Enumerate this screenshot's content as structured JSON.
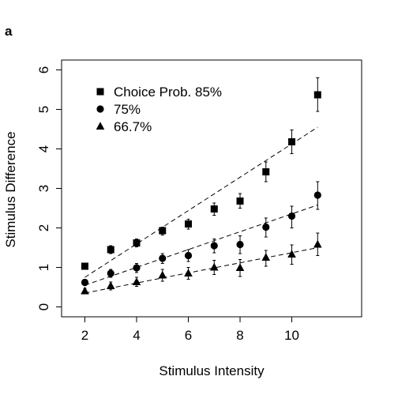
{
  "panel_label": "a",
  "chart_data": {
    "type": "scatter",
    "xlabel": "Stimulus Intensity",
    "ylabel": "Stimulus Difference",
    "xlim": [
      1.1,
      12.7
    ],
    "ylim": [
      -0.25,
      6.25
    ],
    "xticks": [
      2,
      4,
      6,
      8,
      10
    ],
    "yticks": [
      0,
      1,
      2,
      3,
      4,
      5,
      6
    ],
    "x": [
      2,
      3,
      4,
      5,
      6,
      7,
      8,
      9,
      10,
      11
    ],
    "legend_position": "top-left",
    "grid": false,
    "series": [
      {
        "name": "Choice Prob. 85%",
        "marker": "square",
        "values": [
          1.03,
          1.45,
          1.62,
          1.93,
          2.1,
          2.48,
          2.68,
          3.42,
          4.18,
          5.37
        ],
        "err_low": [
          0.95,
          1.35,
          1.52,
          1.82,
          1.97,
          2.32,
          2.5,
          3.17,
          3.88,
          4.95
        ],
        "err_high": [
          1.1,
          1.55,
          1.72,
          2.02,
          2.22,
          2.63,
          2.87,
          3.67,
          4.48,
          5.8
        ],
        "fit": {
          "x": [
            2,
            11
          ],
          "y": [
            0.75,
            4.55
          ]
        }
      },
      {
        "name": "75%",
        "marker": "circle",
        "values": [
          0.62,
          0.85,
          0.99,
          1.23,
          1.3,
          1.55,
          1.58,
          2.02,
          2.3,
          2.83
        ],
        "err_low": [
          0.54,
          0.75,
          0.87,
          1.1,
          1.15,
          1.37,
          1.35,
          1.77,
          2.0,
          2.47
        ],
        "err_high": [
          0.7,
          0.95,
          1.1,
          1.35,
          1.45,
          1.72,
          1.8,
          2.25,
          2.55,
          3.17
        ],
        "fit": {
          "x": [
            2,
            11
          ],
          "y": [
            0.55,
            2.58
          ]
        }
      },
      {
        "name": "66.7%",
        "marker": "triangle",
        "values": [
          0.4,
          0.53,
          0.63,
          0.8,
          0.85,
          1.0,
          0.99,
          1.25,
          1.33,
          1.58
        ],
        "err_low": [
          0.33,
          0.43,
          0.52,
          0.65,
          0.7,
          0.82,
          0.77,
          1.03,
          1.08,
          1.3
        ],
        "err_high": [
          0.47,
          0.63,
          0.75,
          0.95,
          1.0,
          1.18,
          1.2,
          1.43,
          1.57,
          1.87
        ],
        "fit": {
          "x": [
            2,
            11
          ],
          "y": [
            0.35,
            1.5
          ]
        }
      }
    ]
  }
}
